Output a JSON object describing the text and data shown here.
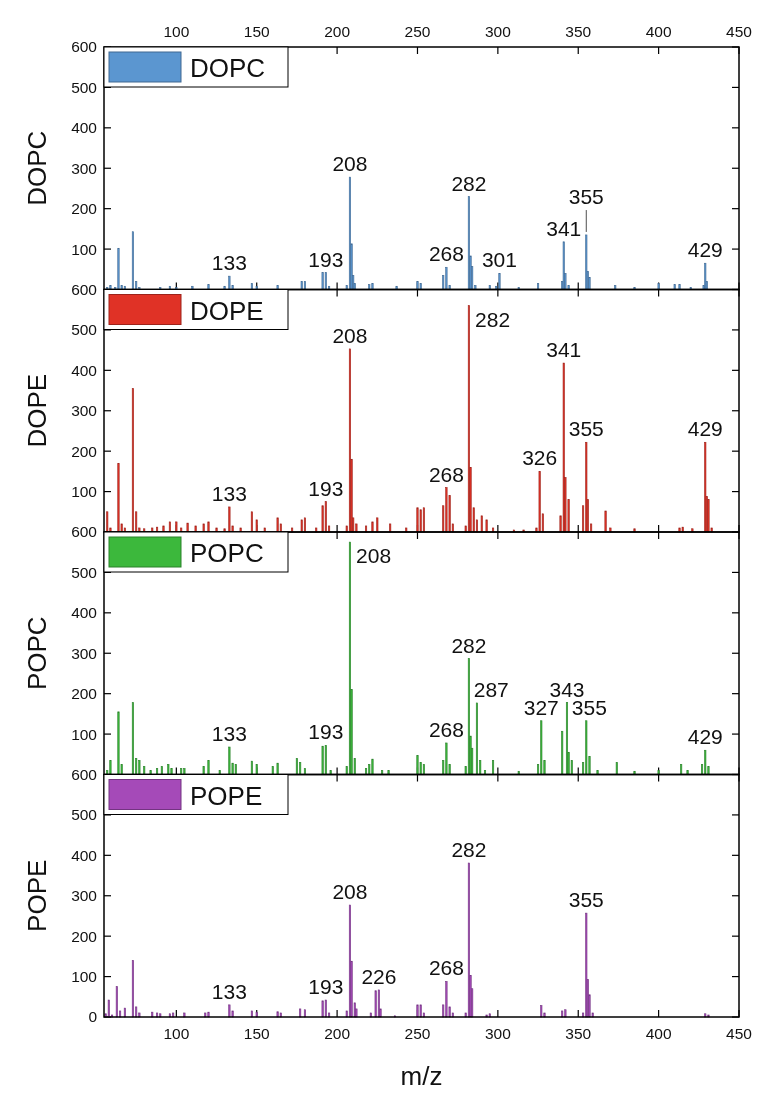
{
  "chart_data": [
    {
      "type": "bar",
      "ylabel": "DOPC",
      "legend": "top left",
      "tick_labels": "y",
      "xlim": [
        55,
        450
      ],
      "xticks": [
        100,
        150,
        200,
        250,
        300,
        350,
        400,
        450
      ],
      "x2lim": [
        55,
        450
      ],
      "x2ticks": [
        100,
        150,
        200,
        250,
        300,
        350,
        400,
        450
      ],
      "ylim": [
        0,
        600
      ],
      "yticks": [
        100,
        200,
        300,
        400,
        500,
        600
      ],
      "x": [
        57,
        59,
        62,
        64,
        66,
        68,
        73,
        75,
        77,
        90,
        96,
        100,
        110,
        120,
        130,
        133,
        135,
        147,
        150,
        163,
        178,
        180,
        191,
        193,
        195,
        206,
        208,
        209,
        210,
        211,
        220,
        222,
        237,
        250,
        252,
        266,
        268,
        270,
        282,
        283,
        284,
        286,
        295,
        299,
        301,
        313,
        325,
        340,
        341,
        342,
        344,
        355,
        356,
        357,
        373,
        385,
        400,
        410,
        413,
        420,
        428,
        429,
        430
      ],
      "series": [
        {
          "name": "DOPC",
          "color": "#5b96d0",
          "values": [
            5,
            10,
            5,
            102,
            10,
            8,
            143,
            20,
            5,
            5,
            8,
            5,
            8,
            12,
            8,
            33,
            10,
            15,
            8,
            10,
            20,
            20,
            42,
            42,
            8,
            10,
            278,
            113,
            35,
            15,
            12,
            15,
            8,
            20,
            15,
            35,
            55,
            10,
            230,
            83,
            57,
            10,
            10,
            8,
            40,
            5,
            15,
            20,
            118,
            40,
            10,
            135,
            45,
            30,
            10,
            5,
            15,
            12,
            12,
            5,
            10,
            65,
            20
          ]
        }
      ],
      "annotations": [
        {
          "text": "133",
          "x": 133,
          "y": 33
        },
        {
          "text": "193",
          "x": 193,
          "y": 42
        },
        {
          "text": "208",
          "x": 208,
          "y": 278
        },
        {
          "text": "268",
          "x": 268,
          "y": 55
        },
        {
          "text": "282",
          "x": 282,
          "y": 230
        },
        {
          "text": "301",
          "x": 301,
          "y": 40
        },
        {
          "text": "341",
          "x": 341,
          "y": 118
        },
        {
          "text": "355",
          "x": 355,
          "y": 135
        },
        {
          "text": "429",
          "x": 429,
          "y": 65
        }
      ]
    },
    {
      "type": "bar",
      "ylabel": "DOPE",
      "legend": "top left",
      "tick_labels": "y",
      "xlim": [
        55,
        450
      ],
      "xticks": [
        100,
        150,
        200,
        250,
        300,
        350,
        400,
        450
      ],
      "ylim": [
        0,
        600
      ],
      "yticks": [
        100,
        200,
        300,
        400,
        500,
        600
      ],
      "x": [
        57,
        59,
        64,
        66,
        68,
        73,
        75,
        77,
        80,
        85,
        88,
        92,
        96,
        100,
        103,
        107,
        112,
        117,
        120,
        125,
        130,
        133,
        135,
        140,
        147,
        150,
        155,
        163,
        165,
        172,
        178,
        180,
        187,
        191,
        193,
        195,
        206,
        208,
        209,
        210,
        212,
        218,
        222,
        225,
        233,
        243,
        250,
        252,
        254,
        266,
        268,
        270,
        272,
        280,
        282,
        283,
        285,
        287,
        290,
        293,
        297,
        310,
        316,
        324,
        326,
        328,
        339,
        341,
        342,
        344,
        353,
        355,
        356,
        358,
        367,
        370,
        385,
        413,
        415,
        421,
        429,
        430,
        431,
        433
      ],
      "series": [
        {
          "name": "DOPE",
          "color": "#e03226",
          "values": [
            50,
            10,
            170,
            20,
            10,
            355,
            50,
            10,
            8,
            10,
            12,
            15,
            25,
            25,
            10,
            22,
            15,
            20,
            25,
            10,
            8,
            62,
            15,
            10,
            50,
            30,
            10,
            35,
            20,
            10,
            30,
            35,
            10,
            65,
            75,
            15,
            15,
            453,
            180,
            35,
            20,
            15,
            25,
            35,
            20,
            10,
            60,
            55,
            60,
            65,
            110,
            90,
            20,
            15,
            560,
            160,
            60,
            30,
            40,
            30,
            10,
            5,
            5,
            10,
            150,
            45,
            40,
            418,
            135,
            80,
            65,
            222,
            80,
            20,
            52,
            10,
            8,
            10,
            12,
            8,
            222,
            88,
            80,
            10
          ]
        }
      ],
      "annotations": [
        {
          "text": "133",
          "x": 133,
          "y": 62
        },
        {
          "text": "193",
          "x": 193,
          "y": 75
        },
        {
          "text": "208",
          "x": 208,
          "y": 453
        },
        {
          "text": "268",
          "x": 268,
          "y": 110
        },
        {
          "text": "282",
          "x": 282,
          "y": 560
        },
        {
          "text": "326",
          "x": 326,
          "y": 150
        },
        {
          "text": "341",
          "x": 341,
          "y": 418
        },
        {
          "text": "355",
          "x": 355,
          "y": 222
        },
        {
          "text": "429",
          "x": 429,
          "y": 222
        }
      ]
    },
    {
      "type": "bar",
      "ylabel": "POPC",
      "legend": "top left",
      "tick_labels": "y",
      "xlim": [
        55,
        450
      ],
      "xticks": [
        100,
        150,
        200,
        250,
        300,
        350,
        400,
        450
      ],
      "ylim": [
        0,
        600
      ],
      "yticks": [
        100,
        200,
        300,
        400,
        500,
        600
      ],
      "x": [
        57,
        59,
        64,
        66,
        73,
        75,
        77,
        80,
        84,
        88,
        91,
        95,
        97,
        103,
        105,
        117,
        120,
        127,
        133,
        135,
        137,
        147,
        150,
        160,
        163,
        175,
        177,
        180,
        191,
        193,
        196,
        206,
        208,
        209,
        211,
        218,
        220,
        222,
        228,
        232,
        250,
        252,
        254,
        266,
        268,
        270,
        280,
        282,
        283,
        284,
        287,
        289,
        292,
        297,
        313,
        325,
        327,
        329,
        340,
        343,
        344,
        346,
        353,
        355,
        357,
        362,
        374,
        385,
        400,
        414,
        418,
        427,
        429,
        431
      ],
      "series": [
        {
          "name": "POPC",
          "color": "#3cb83c",
          "values": [
            10,
            35,
            155,
            25,
            178,
            40,
            35,
            20,
            10,
            15,
            20,
            25,
            15,
            15,
            15,
            20,
            35,
            10,
            68,
            28,
            25,
            33,
            25,
            20,
            28,
            40,
            30,
            15,
            70,
            72,
            10,
            20,
            575,
            210,
            40,
            15,
            25,
            38,
            10,
            10,
            47,
            30,
            25,
            35,
            78,
            25,
            20,
            287,
            95,
            65,
            177,
            35,
            10,
            35,
            8,
            25,
            133,
            35,
            107,
            178,
            55,
            35,
            30,
            133,
            45,
            10,
            30,
            8,
            10,
            25,
            10,
            25,
            60,
            20
          ]
        }
      ],
      "annotations": [
        {
          "text": "133",
          "x": 133,
          "y": 68
        },
        {
          "text": "193",
          "x": 193,
          "y": 72
        },
        {
          "text": "208",
          "x": 208,
          "y": 575
        },
        {
          "text": "268",
          "x": 268,
          "y": 78
        },
        {
          "text": "282",
          "x": 282,
          "y": 287
        },
        {
          "text": "287",
          "x": 287,
          "y": 177
        },
        {
          "text": "327",
          "x": 327,
          "y": 133
        },
        {
          "text": "343",
          "x": 343,
          "y": 178
        },
        {
          "text": "355",
          "x": 355,
          "y": 133
        },
        {
          "text": "429",
          "x": 429,
          "y": 60
        }
      ]
    },
    {
      "type": "bar",
      "ylabel": "POPE",
      "xlabel": "m/z",
      "legend": "top left",
      "xlim": [
        55,
        450
      ],
      "xticks": [
        100,
        150,
        200,
        250,
        300,
        350,
        400,
        450
      ],
      "ylim": [
        0,
        600
      ],
      "yticks": [
        0,
        100,
        200,
        300,
        400,
        500,
        600
      ],
      "x": [
        56,
        58,
        60,
        63,
        65,
        68,
        73,
        75,
        77,
        85,
        88,
        90,
        96,
        98,
        105,
        118,
        120,
        133,
        135,
        147,
        150,
        163,
        165,
        177,
        180,
        191,
        193,
        195,
        206,
        208,
        209,
        211,
        212,
        221,
        224,
        226,
        227,
        236,
        250,
        252,
        254,
        266,
        268,
        270,
        272,
        280,
        282,
        283,
        284,
        293,
        295,
        327,
        329,
        340,
        342,
        353,
        355,
        356,
        357,
        359,
        429,
        431
      ],
      "series": [
        {
          "name": "POPE",
          "color": "#a54ab8",
          "values": [
            8,
            42,
            5,
            75,
            15,
            22,
            140,
            25,
            10,
            12,
            10,
            8,
            8,
            10,
            10,
            10,
            12,
            30,
            15,
            15,
            12,
            13,
            10,
            20,
            18,
            40,
            42,
            10,
            15,
            277,
            138,
            35,
            20,
            10,
            65,
            67,
            20,
            3,
            30,
            30,
            10,
            30,
            88,
            25,
            10,
            10,
            381,
            103,
            70,
            5,
            8,
            28,
            10,
            15,
            18,
            10,
            257,
            93,
            55,
            10,
            8,
            5
          ]
        }
      ],
      "annotations": [
        {
          "text": "133",
          "x": 133,
          "y": 30
        },
        {
          "text": "193",
          "x": 193,
          "y": 42
        },
        {
          "text": "208",
          "x": 208,
          "y": 277
        },
        {
          "text": "226",
          "x": 226,
          "y": 67
        },
        {
          "text": "268",
          "x": 268,
          "y": 88
        },
        {
          "text": "282",
          "x": 282,
          "y": 381
        },
        {
          "text": "355",
          "x": 355,
          "y": 257
        }
      ]
    }
  ]
}
